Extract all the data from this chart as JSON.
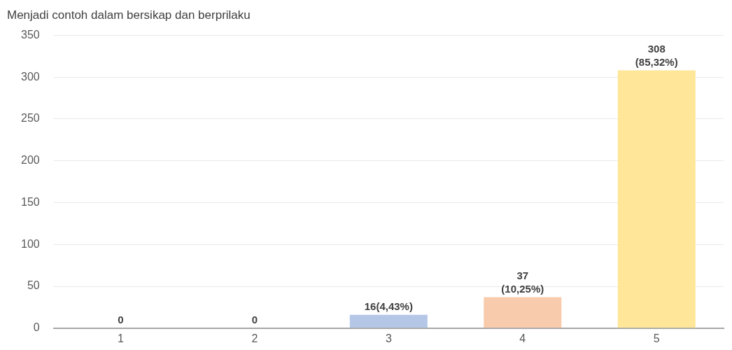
{
  "chart_data": {
    "type": "bar",
    "title": "Menjadi contoh dalam bersikap dan berprilaku",
    "categories": [
      "1",
      "2",
      "3",
      "4",
      "5"
    ],
    "values": [
      0,
      0,
      16,
      37,
      308
    ],
    "colors": [
      "#b4c7e7",
      "#b4c7e7",
      "#b4c7e7",
      "#f8cbad",
      "#ffe699"
    ],
    "value_labels": [
      "0",
      "0",
      "16(4,43%)",
      "37\n(10,25%)",
      "308\n(85,32%)"
    ],
    "ylim": [
      0,
      350
    ],
    "yticks": [
      0,
      50,
      100,
      150,
      200,
      250,
      300,
      350
    ],
    "grid": "y",
    "legend": false
  }
}
